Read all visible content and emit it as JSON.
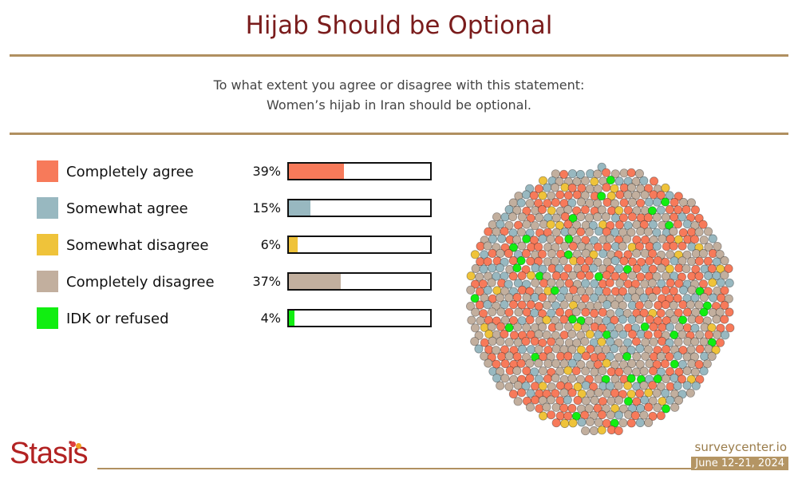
{
  "header": {
    "title": "Hijab Should be Optional",
    "question_line1": "To what extent you agree or disagree with this statement:",
    "question_line2": "Women’s hijab in Iran should be optional."
  },
  "colors": {
    "completely_agree": "#f77a5a",
    "somewhat_agree": "#98b8c0",
    "somewhat_disagree": "#efc33a",
    "completely_disagree": "#c2af9e",
    "idk_refused": "#11ee11",
    "title": "#7a1c1c",
    "rule": "#b09060"
  },
  "chart_data": {
    "type": "bar",
    "orientation": "horizontal",
    "title": "Hijab Should be Optional",
    "categories": [
      "Completely agree",
      "Somewhat agree",
      "Somewhat disagree",
      "Completely disagree",
      "IDK or refused"
    ],
    "values": [
      39,
      15,
      6,
      37,
      4
    ],
    "value_labels": [
      "39%",
      "15%",
      "6%",
      "37%",
      "4%"
    ],
    "unit": "%",
    "xlim": [
      0,
      100
    ],
    "legend": "left",
    "grid": false
  },
  "branding": {
    "logo_text": "Stasis",
    "site": "surveycenter.io",
    "date_range": "June 12-21, 2024"
  }
}
